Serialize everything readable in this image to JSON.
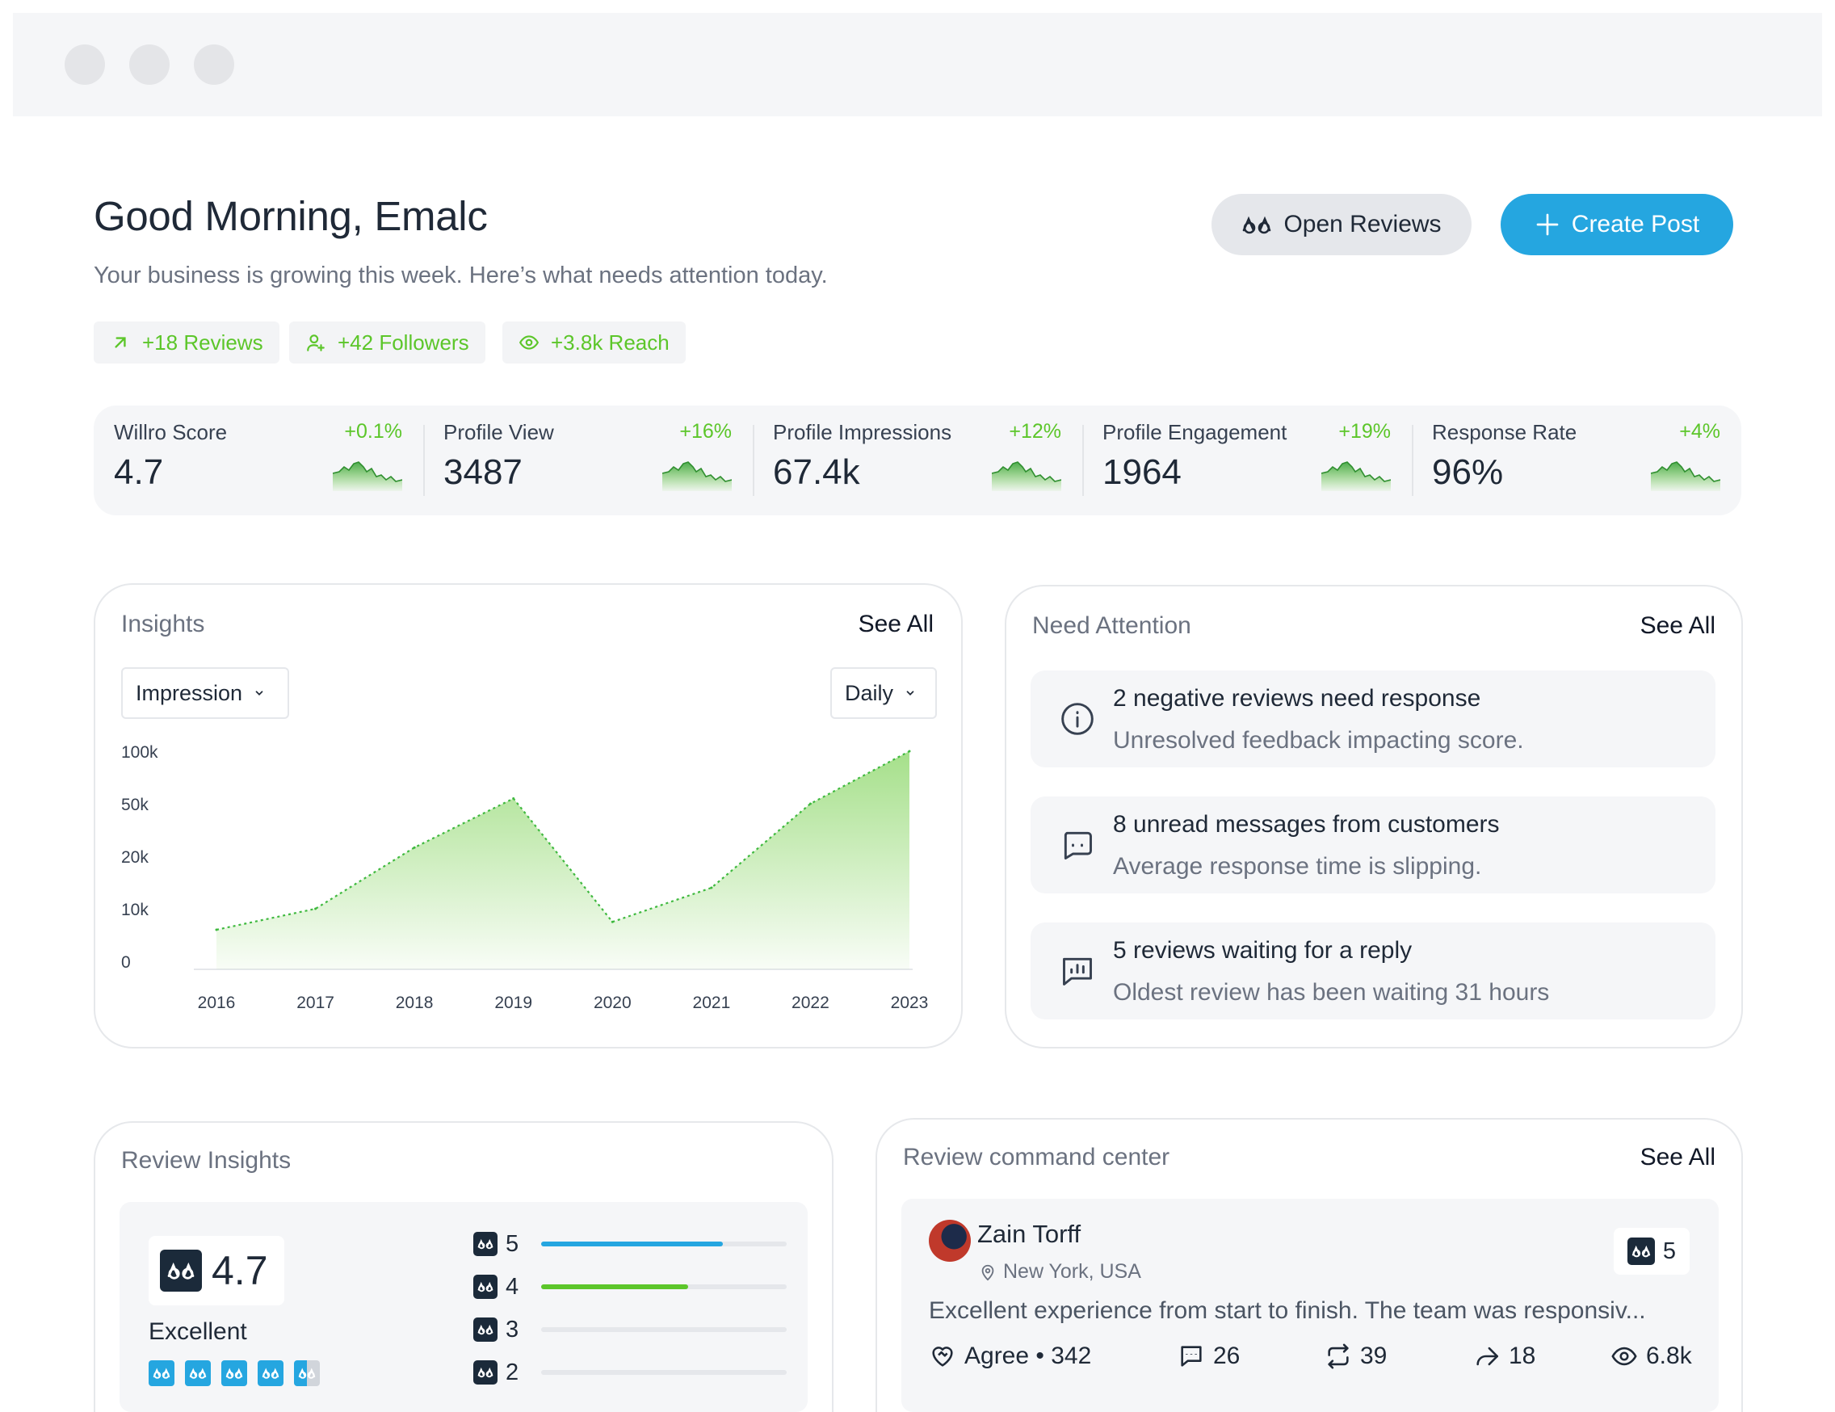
{
  "header": {
    "greeting": "Good Morning, Emalc",
    "subtitle": "Your business is growing this week. Here’s what needs attention today.",
    "open_reviews_label": "Open Reviews",
    "create_post_label": "Create Post",
    "pills": [
      {
        "icon": "arrow-up-right-icon",
        "label": "+18 Reviews"
      },
      {
        "icon": "user-plus-icon",
        "label": "+42 Followers"
      },
      {
        "icon": "eye-icon",
        "label": "+3.8k Reach"
      }
    ],
    "accent_green": "#5cc62a",
    "accent_blue": "#25a6e0"
  },
  "stats": [
    {
      "label": "Willro Score",
      "value": "4.7",
      "delta": "+0.1%"
    },
    {
      "label": "Profile View",
      "value": "3487",
      "delta": "+16%"
    },
    {
      "label": "Profile Impressions",
      "value": "67.4k",
      "delta": "+12%"
    },
    {
      "label": "Profile Engagement",
      "value": "1964",
      "delta": "+19%"
    },
    {
      "label": "Response Rate",
      "value": "96%",
      "delta": "+4%"
    }
  ],
  "insights": {
    "title": "Insights",
    "see_all": "See All",
    "metric_select": "Impression",
    "period_select": "Daily"
  },
  "chart_data": {
    "type": "area",
    "x": [
      "2016",
      "2017",
      "2018",
      "2019",
      "2020",
      "2021",
      "2022",
      "2023"
    ],
    "y_ticks": [
      "100k",
      "50k",
      "20k",
      "10k",
      "0"
    ],
    "y_tick_values": [
      100000,
      50000,
      20000,
      10000,
      0
    ],
    "values": [
      6000,
      10000,
      25000,
      55000,
      7500,
      14000,
      50000,
      100000
    ],
    "scale": "piecewise-categorical",
    "color": "#5cc62a",
    "line_style": "dotted",
    "grid": false
  },
  "attention": {
    "title": "Need Attention",
    "see_all": "See All",
    "items": [
      {
        "icon": "info-icon",
        "title": "2 negative reviews need response",
        "subtitle": "Unresolved feedback impacting score."
      },
      {
        "icon": "message-icon",
        "title": "8 unread messages from customers",
        "subtitle": "Average response time is slipping."
      },
      {
        "icon": "bar-chart-icon",
        "title": "5 reviews waiting for a reply",
        "subtitle": "Oldest review has been waiting 31 hours"
      }
    ]
  },
  "review_insights": {
    "title": "Review Insights",
    "score": "4.7",
    "score_label": "Excellent",
    "stars_filled": 4.5,
    "rows": [
      {
        "label": "5",
        "fraction": 0.74,
        "color": "#25a6e0"
      },
      {
        "label": "4",
        "fraction": 0.6,
        "color": "#5cc62a"
      },
      {
        "label": "3",
        "fraction": 0,
        "color": "#e5e7eb"
      },
      {
        "label": "2",
        "fraction": 0,
        "color": "#e5e7eb"
      }
    ]
  },
  "command_center": {
    "title": "Review command center",
    "see_all": "See All",
    "review": {
      "name": "Zain Torff",
      "location": "New York, USA",
      "rating": "5",
      "text": "Excellent experience from start to finish. The team was responsiv...",
      "agree": "Agree • 342",
      "comments": "26",
      "reposts": "39",
      "shares": "18",
      "views": "6.8k"
    }
  }
}
